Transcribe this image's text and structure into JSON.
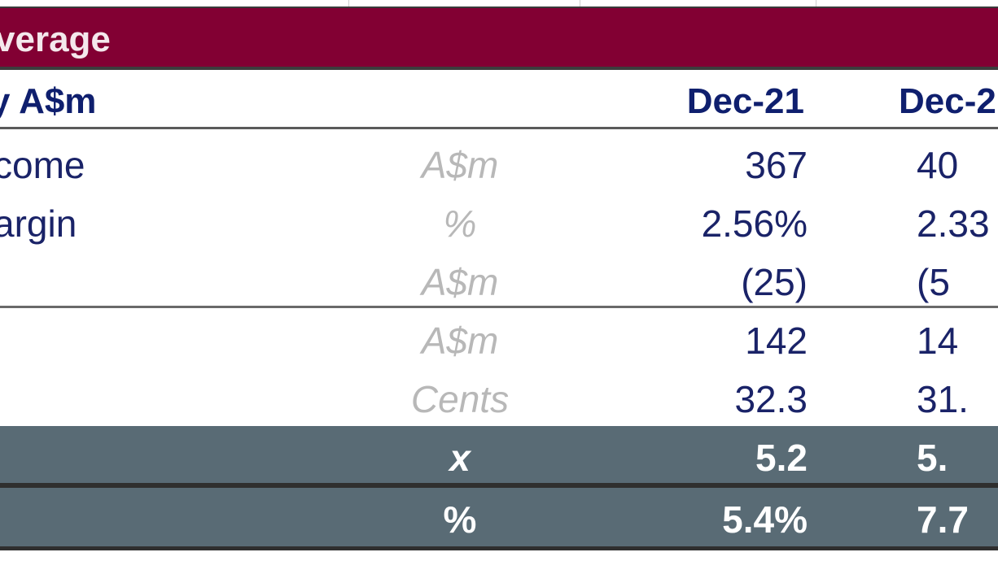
{
  "section": {
    "title": "verage"
  },
  "header": {
    "label": "y A$m",
    "col1": "Dec-21",
    "col2": "Dec-2"
  },
  "rows": [
    {
      "label": "come",
      "unit": "A$m",
      "v1": "367",
      "v2": "40"
    },
    {
      "label": "argin",
      "unit": "%",
      "v1": "2.56%",
      "v2": "2.33"
    },
    {
      "label": "",
      "unit": "A$m",
      "v1": "(25)",
      "v2": "(5"
    },
    {
      "label": "",
      "unit": "A$m",
      "v1": "142",
      "v2": "14"
    },
    {
      "label": "",
      "unit": "Cents",
      "v1": "32.3",
      "v2": "31."
    },
    {
      "label": "",
      "unit": "x",
      "v1": "5.2",
      "v2": "5."
    },
    {
      "label": "",
      "unit": "%",
      "v1": "5.4%",
      "v2": "7.7"
    }
  ],
  "colors": {
    "banner": "#820033",
    "header_text": "#0f1f6e",
    "highlight_row": "#596b75"
  }
}
